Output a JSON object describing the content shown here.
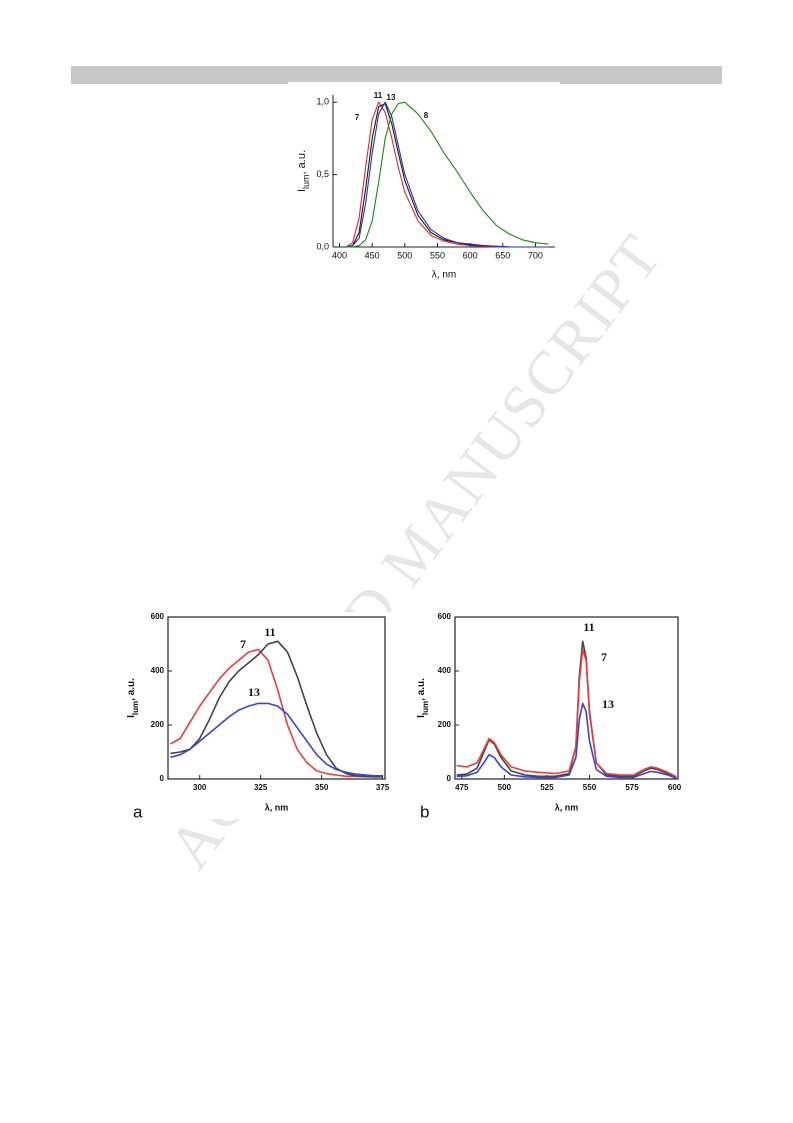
{
  "watermark": "ACCEPTED MANUSCRIPT",
  "chart_data": [
    {
      "type": "line",
      "x_label": "λ, nm",
      "y_label": "I",
      "y_label_sub": "lum",
      "y_label_suffix": ", a.u.",
      "x": [
        410,
        420,
        430,
        440,
        450,
        460,
        470,
        480,
        490,
        500,
        520,
        540,
        560,
        580,
        600,
        620,
        640,
        660,
        680,
        700,
        720
      ],
      "series": [
        {
          "name": "7",
          "color": "#e3262b",
          "values": [
            0,
            0.03,
            0.2,
            0.55,
            0.88,
            1.0,
            0.93,
            0.75,
            0.55,
            0.38,
            0.18,
            0.08,
            0.04,
            0.02,
            0.01,
            0.005,
            0,
            0,
            0,
            0,
            0
          ]
        },
        {
          "name": "11",
          "color": "#1a1a1a",
          "values": [
            0,
            0.01,
            0.1,
            0.4,
            0.75,
            0.97,
            0.99,
            0.85,
            0.65,
            0.46,
            0.22,
            0.1,
            0.05,
            0.03,
            0.015,
            0.01,
            0.005,
            0,
            0,
            0,
            0
          ]
        },
        {
          "name": "13",
          "color": "#2030c8",
          "values": [
            0,
            0.01,
            0.06,
            0.3,
            0.65,
            0.92,
            1.0,
            0.9,
            0.7,
            0.5,
            0.25,
            0.12,
            0.06,
            0.03,
            0.02,
            0.01,
            0.005,
            0,
            0,
            0,
            0
          ]
        },
        {
          "name": "8",
          "color": "#1a8a1a",
          "values": [
            0,
            0,
            0.01,
            0.05,
            0.18,
            0.45,
            0.75,
            0.92,
            0.99,
            1.0,
            0.92,
            0.8,
            0.65,
            0.52,
            0.38,
            0.25,
            0.15,
            0.09,
            0.05,
            0.03,
            0.02
          ]
        }
      ],
      "xlim": [
        390,
        730
      ],
      "xticks": [
        400,
        450,
        500,
        550,
        600,
        650,
        700
      ],
      "ylim": [
        0,
        1.05
      ],
      "yticks": [
        {
          "value": 0,
          "label": "0,0"
        },
        {
          "value": 0.5,
          "label": "0,5"
        },
        {
          "value": 1,
          "label": "1,0"
        }
      ]
    },
    {
      "type": "line",
      "panel_label": "a",
      "x_label": "λ, nm",
      "y_label": "I",
      "y_label_sub": "lum",
      "y_label_suffix": ", a.u.",
      "x": [
        288,
        292,
        296,
        300,
        304,
        308,
        312,
        316,
        320,
        324,
        328,
        332,
        336,
        340,
        344,
        348,
        352,
        356,
        360,
        364,
        368,
        372,
        375
      ],
      "series": [
        {
          "name": "7",
          "color": "#f03c3c",
          "values": [
            130,
            150,
            210,
            270,
            320,
            370,
            410,
            440,
            470,
            480,
            440,
            330,
            200,
            110,
            60,
            30,
            20,
            15,
            10,
            10,
            8,
            8,
            8
          ]
        },
        {
          "name": "11",
          "color": "#444444",
          "values": [
            95,
            100,
            110,
            150,
            220,
            300,
            360,
            400,
            430,
            460,
            500,
            510,
            470,
            380,
            270,
            170,
            90,
            40,
            20,
            12,
            10,
            8,
            8
          ]
        },
        {
          "name": "13",
          "color": "#3344dd",
          "values": [
            80,
            90,
            110,
            140,
            170,
            200,
            230,
            255,
            270,
            280,
            280,
            270,
            240,
            190,
            140,
            90,
            55,
            35,
            25,
            18,
            15,
            12,
            12
          ]
        }
      ],
      "xlim": [
        287,
        376
      ],
      "xticks": [
        300,
        325,
        350,
        375
      ],
      "ylim": [
        0,
        600
      ],
      "yticks": [
        0,
        200,
        400,
        600
      ]
    },
    {
      "type": "line",
      "panel_label": "b",
      "x_label": "λ, nm",
      "y_label": "I",
      "y_label_sub": "lum",
      "y_label_suffix": ", a.u.",
      "x": [
        472,
        478,
        484,
        488,
        491,
        494,
        498,
        504,
        512,
        520,
        530,
        538,
        542,
        544,
        546,
        548,
        550,
        554,
        560,
        568,
        576,
        582,
        586,
        590,
        596,
        601
      ],
      "series": [
        {
          "name": "11",
          "color": "#444444",
          "values": [
            15,
            18,
            40,
            100,
            145,
            130,
            80,
            30,
            15,
            10,
            10,
            20,
            120,
            380,
            510,
            450,
            250,
            60,
            15,
            10,
            10,
            30,
            40,
            35,
            20,
            5
          ]
        },
        {
          "name": "7",
          "color": "#f03c3c",
          "values": [
            50,
            45,
            60,
            110,
            150,
            135,
            90,
            45,
            30,
            25,
            20,
            30,
            120,
            360,
            480,
            440,
            240,
            60,
            20,
            15,
            15,
            35,
            45,
            40,
            25,
            8
          ]
        },
        {
          "name": "13",
          "color": "#3344dd",
          "values": [
            10,
            12,
            25,
            60,
            90,
            80,
            45,
            15,
            8,
            6,
            6,
            15,
            80,
            220,
            280,
            250,
            140,
            35,
            10,
            6,
            6,
            20,
            28,
            25,
            15,
            3
          ]
        }
      ],
      "xlim": [
        471,
        602
      ],
      "xticks": [
        475,
        500,
        525,
        550,
        575,
        600
      ],
      "ylim": [
        0,
        600
      ],
      "yticks": [
        0,
        200,
        400,
        600
      ]
    }
  ]
}
